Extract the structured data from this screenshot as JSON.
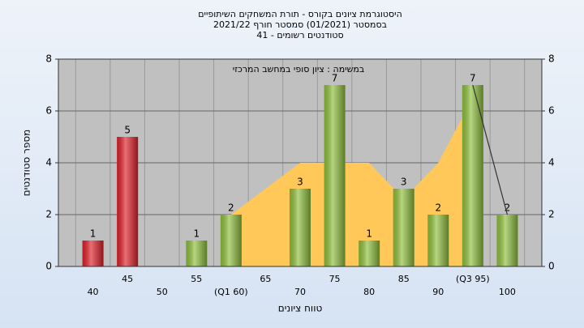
{
  "chart_data": {
    "type": "bar",
    "title_lines": [
      "היסטוגרמת ציונים בקורס - תורת המשחקים השיתופיים",
      "בסמסטר  (01/2021)  סמסטר חורף 2021/22",
      "סטודנטים רשומים - 41"
    ],
    "subtitle": "במשימה : ציון סופי במחשב המרכזי",
    "x_label": "טווח ציונים",
    "y_label": "מספר סטודנטים",
    "categories": [
      "40",
      "45",
      "50",
      "55",
      "(Q1 60)",
      "65",
      "70",
      "75",
      "80",
      "85",
      "90",
      "(Q3 95)",
      "100"
    ],
    "values": [
      1,
      5,
      null,
      1,
      2,
      null,
      3,
      7,
      1,
      3,
      2,
      7,
      2
    ],
    "bar_colors": [
      "#e0202a",
      "#e0202a",
      null,
      "#8fbf3c",
      "#8fbf3c",
      null,
      "#8fbf3c",
      "#8fbf3c",
      "#8fbf3c",
      "#8fbf3c",
      "#8fbf3c",
      "#8fbf3c",
      "#8fbf3c"
    ],
    "area": {
      "color": "#ffc859",
      "values": [
        null,
        null,
        null,
        null,
        2,
        3,
        4,
        4,
        4,
        2.6,
        4,
        6.5,
        null
      ]
    },
    "line": {
      "color": "#333333",
      "values": [
        null,
        null,
        null,
        null,
        null,
        null,
        null,
        null,
        null,
        null,
        null,
        7,
        2
      ]
    },
    "ylim": [
      0,
      8
    ],
    "yticks": [
      0,
      2,
      4,
      6,
      8
    ],
    "grid": true,
    "plot_color": "#c0c0c0"
  }
}
